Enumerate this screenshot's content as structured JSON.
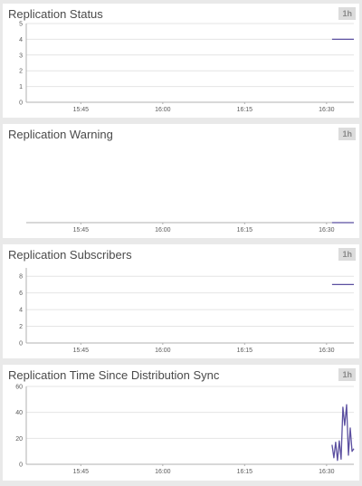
{
  "panels": [
    {
      "title": "Replication Status",
      "range": "1h"
    },
    {
      "title": "Replication Warning",
      "range": "1h"
    },
    {
      "title": "Replication Subscribers",
      "range": "1h"
    },
    {
      "title": "Replication Time Since Distribution Sync",
      "range": "1h"
    }
  ],
  "colors": {
    "series": "#5b4fa0",
    "grid": "#e4e4e4",
    "axis": "#b0b0b0",
    "background": "#e9e9e9"
  },
  "chart_data": [
    {
      "type": "line",
      "title": "Replication Status",
      "x_ticks": [
        "15:45",
        "16:00",
        "16:15",
        "16:30"
      ],
      "x_range": [
        "15:35",
        "16:35"
      ],
      "ylim": [
        0,
        5
      ],
      "y_ticks": [
        0,
        1,
        2,
        3,
        4,
        5
      ],
      "grid": true,
      "series": [
        {
          "x": [
            "16:31",
            "16:35"
          ],
          "values": [
            4,
            4
          ]
        }
      ]
    },
    {
      "type": "line",
      "title": "Replication Warning",
      "x_ticks": [
        "15:45",
        "16:00",
        "16:15",
        "16:30"
      ],
      "x_range": [
        "15:35",
        "16:35"
      ],
      "ylim": [
        0,
        1
      ],
      "y_ticks": [],
      "grid": false,
      "series": [
        {
          "x": [
            "16:31",
            "16:35"
          ],
          "values": [
            0,
            0
          ]
        }
      ]
    },
    {
      "type": "line",
      "title": "Replication Subscribers",
      "x_ticks": [
        "15:45",
        "16:00",
        "16:15",
        "16:30"
      ],
      "x_range": [
        "15:35",
        "16:35"
      ],
      "ylim": [
        0,
        9
      ],
      "y_ticks": [
        0,
        2,
        4,
        6,
        8
      ],
      "grid": true,
      "series": [
        {
          "x": [
            "16:31",
            "16:35"
          ],
          "values": [
            7,
            7
          ]
        }
      ]
    },
    {
      "type": "line",
      "title": "Replication Time Since Distribution Sync",
      "x_ticks": [
        "15:45",
        "16:00",
        "16:15",
        "16:30"
      ],
      "x_range": [
        "15:35",
        "16:35"
      ],
      "ylim": [
        0,
        60
      ],
      "y_ticks": [
        0,
        20,
        40,
        60
      ],
      "grid": true,
      "series": [
        {
          "x": [
            "16:31:00",
            "16:31:20",
            "16:31:40",
            "16:32:00",
            "16:32:20",
            "16:32:40",
            "16:33:00",
            "16:33:20",
            "16:33:40",
            "16:34:00",
            "16:34:20",
            "16:34:40",
            "16:35:00"
          ],
          "values": [
            15,
            5,
            17,
            3,
            18,
            4,
            44,
            30,
            46,
            7,
            28,
            10,
            12
          ]
        }
      ]
    }
  ]
}
